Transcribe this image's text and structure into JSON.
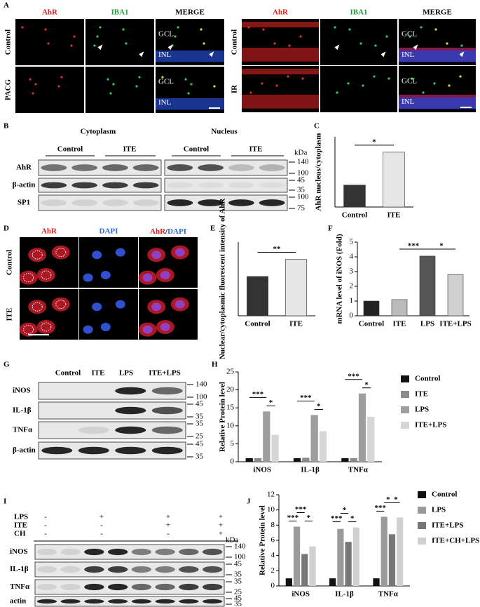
{
  "panel_letters": [
    "A",
    "B",
    "C",
    "D",
    "E",
    "F",
    "G",
    "H",
    "I",
    "J"
  ],
  "panel_a": {
    "left": {
      "columns": [
        "AhR",
        "IBA1",
        "MERGE"
      ],
      "rows": [
        "Control",
        "PACG"
      ],
      "merge_labels": [
        [
          "GCL",
          "INL"
        ],
        [
          "GCL",
          "INL"
        ]
      ]
    },
    "right": {
      "columns": [
        "AhR",
        "IBA1",
        "MERGE"
      ],
      "rows": [
        "Control",
        "IR"
      ],
      "merge_labels": [
        [
          "GCL",
          "INL"
        ],
        [
          "GCL",
          "INL"
        ]
      ]
    }
  },
  "panel_b": {
    "fractions": [
      "Cytoplasm",
      "Nucleus"
    ],
    "groups": [
      "Control",
      "ITE",
      "Control",
      "ITE"
    ],
    "rows": [
      "AhR",
      "β-actin",
      "SP1"
    ],
    "kda_unit": "kDa",
    "kda": [
      [
        140,
        100
      ],
      [
        45,
        35
      ],
      [
        100,
        75
      ]
    ]
  },
  "panel_d": {
    "columns": [
      "AhR",
      "DAPI"
    ],
    "merge": [
      "AhR",
      "/",
      "DAPI"
    ],
    "rows": [
      "Control",
      "ITE"
    ]
  },
  "panel_g": {
    "columns": [
      "Control",
      "ITE",
      "LPS",
      "ITE+LPS"
    ],
    "rows": [
      "iNOS",
      "IL-1β",
      "TNFα",
      "β-actin"
    ],
    "kda": [
      [
        140,
        100
      ],
      [
        45,
        35
      ],
      [
        35,
        25
      ],
      [
        45,
        35
      ]
    ]
  },
  "panel_i": {
    "treatments": [
      {
        "name": "LPS",
        "signs": [
          "-",
          "+",
          "+",
          "+"
        ]
      },
      {
        "name": "ITE",
        "signs": [
          "-",
          "-",
          "+",
          "+"
        ]
      },
      {
        "name": "CH",
        "signs": [
          "-",
          "-",
          "-",
          "+"
        ]
      }
    ],
    "rows": [
      "iNOS",
      "IL-1β",
      "TNFα",
      "actin"
    ],
    "kda_unit": "kDa",
    "kda": [
      [
        140,
        100
      ],
      [
        45,
        35
      ],
      [
        35,
        25
      ],
      [
        45,
        35
      ]
    ]
  },
  "chart_data": [
    {
      "type": "bar",
      "y_label": "AhR nucleus/cytoplasm",
      "categories": [
        "Control",
        "ITE"
      ],
      "values": [
        1.0,
        2.5
      ],
      "colors": [
        "#333333",
        "#e6e6e6"
      ],
      "ylim": [
        0,
        3.2
      ],
      "annotations": [
        "*"
      ]
    },
    {
      "type": "bar",
      "y_label": "Nuclear/cytoplasmic fluorescent intensity of AhR",
      "categories": [
        "Control",
        "ITE"
      ],
      "values": [
        0.8,
        1.15
      ],
      "colors": [
        "#333333",
        "#e6e6e6"
      ],
      "ylim": [
        0,
        1.5
      ],
      "annotations": [
        "**"
      ]
    },
    {
      "type": "bar",
      "y_label": "mRNA level of iNOS (Fold)",
      "categories": [
        "Control",
        "ITE",
        "LPS",
        "ITE+LPS"
      ],
      "values": [
        1.0,
        1.1,
        4.05,
        2.8
      ],
      "colors": [
        "#222222",
        "#bbbbbb",
        "#555555",
        "#d0d0d0"
      ],
      "ylim": [
        0,
        5
      ],
      "yticks": [
        0,
        1,
        2,
        3,
        4,
        5
      ],
      "annotations": [
        "***",
        "*"
      ]
    },
    {
      "type": "grouped-bar",
      "y_label": "Relative Protein  level",
      "categories": [
        "iNOS",
        "IL-1β",
        "TNFα"
      ],
      "series": [
        {
          "name": "Control",
          "color": "#111111",
          "values": [
            1,
            1,
            1
          ]
        },
        {
          "name": "ITE",
          "color": "#8a8a8a",
          "values": [
            1,
            1.1,
            1
          ]
        },
        {
          "name": "LPS",
          "color": "#9e9e9e",
          "values": [
            14,
            13,
            19
          ]
        },
        {
          "name": "ITE+LPS",
          "color": "#d6d6d6",
          "values": [
            7.5,
            8.5,
            12.5
          ]
        }
      ],
      "ylim": [
        0,
        25
      ],
      "yticks": [
        0,
        5,
        10,
        15,
        20,
        25
      ],
      "annotations": [
        "***",
        "*",
        "***",
        "*",
        "***",
        "*"
      ]
    },
    {
      "type": "grouped-bar",
      "y_label": "Relative Protein  level",
      "categories": [
        "iNOS",
        "IL-1β",
        "TNFα"
      ],
      "series": [
        {
          "name": "Control",
          "color": "#111111",
          "values": [
            1,
            1,
            1
          ]
        },
        {
          "name": "LPS",
          "color": "#9a9a9a",
          "values": [
            7.8,
            7.5,
            9.1
          ]
        },
        {
          "name": "ITE+LPS",
          "color": "#777777",
          "values": [
            4.2,
            5.8,
            6.8
          ]
        },
        {
          "name": "ITE+CH+LPS",
          "color": "#d0d0d0",
          "values": [
            5.2,
            7.7,
            9.0
          ]
        }
      ],
      "ylim": [
        0,
        12
      ],
      "yticks": [
        0,
        2,
        4,
        6,
        8,
        10,
        12
      ],
      "annotations": [
        "***",
        "***",
        "*",
        "***",
        "*",
        "*",
        "***",
        "*",
        "*"
      ]
    }
  ]
}
